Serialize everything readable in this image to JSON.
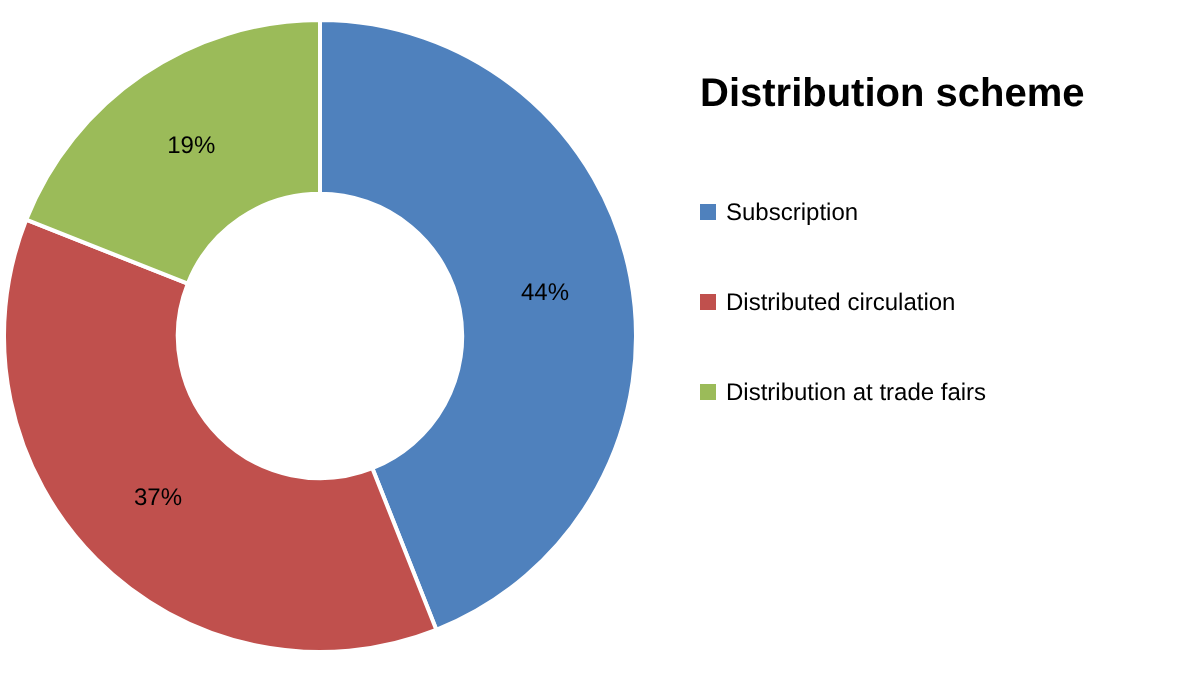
{
  "chart_data": {
    "type": "donut",
    "title": "Distribution scheme",
    "categories": [
      "Subscription",
      "Distributed circulation",
      "Distribution at trade fairs"
    ],
    "values": [
      44,
      37,
      19
    ],
    "colors": [
      "#4f81bd",
      "#c0504d",
      "#9bbb59"
    ],
    "value_labels": [
      "44%",
      "37%",
      "19%"
    ],
    "legend": "right"
  }
}
